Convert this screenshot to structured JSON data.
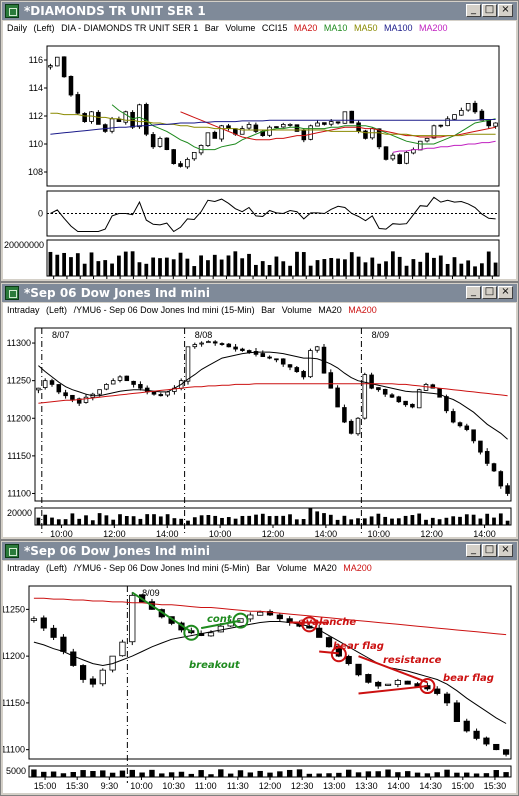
{
  "colors": {
    "ma20": "#cc1111",
    "ma10": "#1e8a1e",
    "ma50": "#8a8a00",
    "ma100": "#1a1a8a",
    "ma200": "#c020c0",
    "titlebar": "#7f8a99"
  },
  "panel1": {
    "title": "*DIAMONDS TR UNIT SER 1",
    "hdr": {
      "period": "Daily",
      "pos": "(Left)",
      "sym": "DIA - DIAMONDS TR UNIT SER 1",
      "bar": "Bar",
      "volume": "Volume",
      "cci": "CCI15",
      "ma20": "MA20",
      "ma10": "MA10",
      "ma50": "MA50",
      "ma100": "MA100",
      "ma200": "MA200"
    },
    "ytick_labels": [
      "116",
      "114",
      "112",
      "110",
      "108"
    ],
    "cci_zero": "0",
    "vol_label": "20000000",
    "xtick_labels": [
      "9",
      "11",
      "15",
      "17",
      "19",
      "23",
      "25",
      "30",
      "J",
      "5",
      "7",
      "8",
      "9",
      "13",
      "15",
      "19",
      "21",
      "23",
      "27",
      "29",
      "J",
      "6",
      "10",
      "12",
      "14",
      "18",
      "20",
      "24",
      "26",
      "28",
      "A",
      "3",
      "7",
      "9"
    ]
  },
  "panel2": {
    "title": "*Sep 06  Dow Jones Ind mini",
    "hdr": {
      "period": "Intraday",
      "pos": "(Left)",
      "sym": "/YMU6 - Sep 06  Dow Jones Ind mini  (15-Min)",
      "bar": "Bar",
      "volume": "Volume",
      "ma20": "MA20",
      "ma200": "MA200"
    },
    "dates": [
      "8/07",
      "8/08",
      "8/09"
    ],
    "ytick_labels": [
      "11300",
      "11250",
      "11200",
      "11150",
      "11100"
    ],
    "vol_label": "20000",
    "xtick_labels": [
      "10:00",
      "12:00",
      "14:00",
      "10:00",
      "12:00",
      "14:00",
      "10:00",
      "12:00",
      "14:00"
    ]
  },
  "panel3": {
    "title": "*Sep 06  Dow Jones Ind mini",
    "hdr": {
      "period": "Intraday",
      "pos": "(Left)",
      "sym": "/YMU6 - Sep 06  Dow Jones Ind mini  (5-Min)",
      "bar": "Bar",
      "volume": "Volume",
      "ma20": "MA20",
      "ma200": "MA200"
    },
    "dates": [
      "8/09"
    ],
    "ytick_labels": [
      "11250",
      "11200",
      "11150",
      "11100"
    ],
    "vol_label": "5000",
    "xtick_labels": [
      "15:00",
      "15:30",
      "9:30",
      "10:00",
      "10:30",
      "11:00",
      "11:30",
      "12:00",
      "12:30",
      "13:00",
      "13:30",
      "14:00",
      "14:30",
      "15:00",
      "15:30"
    ],
    "annotations": {
      "cont": "cont.",
      "breakout": "breakout",
      "avalanche": "avalanche",
      "bear_flag_1": "bear flag",
      "resistance": "resistance",
      "bear_flag_2": "bear flag"
    }
  },
  "chart_data": [
    {
      "type": "candlestick",
      "title": "DIA - DIAMONDS TR UNIT SER 1",
      "ylim": [
        107,
        117
      ],
      "series": [
        {
          "name": "DIA",
          "values": [
            115.6,
            116.2,
            114.8,
            113.5,
            112.2,
            111.6,
            112.3,
            111.4,
            110.9,
            111.8,
            111.6,
            112.3,
            111.2,
            112.8,
            110.7,
            109.8,
            110.4,
            109.6,
            108.6,
            108.4,
            108.9,
            109.4,
            109.9,
            110.8,
            110.4,
            111.3,
            111.1,
            110.7,
            111.1,
            111.4,
            110.9,
            110.6,
            111.2,
            111.2,
            111.4,
            111.4,
            110.9,
            110.3,
            111.3,
            111.5,
            111.4,
            111.6,
            111.5,
            112.3,
            111.5,
            110.9,
            110.4,
            111.1,
            109.8,
            108.9,
            109.2,
            108.6,
            109.4,
            109.6,
            110.2,
            110.4,
            111.3,
            111.3,
            111.8,
            112.1,
            112.4,
            112.9,
            112.3,
            111.7,
            111.3,
            111.5
          ]
        },
        {
          "name": "MA10",
          "values": [
            null,
            null,
            null,
            null,
            null,
            null,
            null,
            null,
            null,
            112.8,
            112.4,
            112.1,
            111.8,
            111.9,
            111.7,
            111.3,
            111.1,
            110.9,
            110.6,
            110.3,
            110.1,
            109.8,
            109.6,
            109.6,
            109.6,
            109.8,
            109.9,
            110.0,
            110.3,
            110.5,
            110.7,
            110.9,
            111.0,
            111.1,
            111.1,
            111.2,
            111.2,
            111.1,
            111.1,
            111.1,
            111.1,
            111.2,
            111.2,
            111.3,
            111.3,
            111.3,
            111.3,
            111.2,
            111.0,
            110.8,
            110.6,
            110.4,
            110.2,
            110.1,
            110.0,
            110.0,
            110.0,
            110.2,
            110.4,
            110.6,
            110.9,
            111.2,
            111.5,
            111.6,
            111.7,
            111.8
          ]
        },
        {
          "name": "MA20",
          "values": [
            null,
            null,
            null,
            null,
            null,
            null,
            null,
            null,
            null,
            null,
            null,
            null,
            null,
            null,
            null,
            null,
            null,
            null,
            null,
            112.3,
            112.1,
            111.9,
            111.7,
            111.5,
            111.3,
            111.1,
            110.9,
            110.7,
            110.5,
            110.4,
            110.3,
            110.3,
            110.3,
            110.4,
            110.4,
            110.5,
            110.6,
            110.6,
            110.7,
            110.8,
            110.9,
            111.0,
            111.1,
            111.2,
            111.2,
            111.2,
            111.1,
            111.1,
            111.0,
            110.9,
            110.8,
            110.7,
            110.6,
            110.6,
            110.5,
            110.5,
            110.5,
            110.5,
            110.6,
            110.6,
            110.7,
            110.8,
            110.9,
            111.0,
            111.1,
            111.2
          ]
        },
        {
          "name": "MA50",
          "values": [
            112.2,
            112.2,
            112.1,
            112.1,
            112.1,
            112.0,
            112.0,
            111.9,
            111.9,
            111.8,
            111.8,
            111.7,
            111.7,
            111.6,
            111.6,
            111.5,
            111.5,
            111.4,
            111.4,
            111.3,
            111.3,
            111.2,
            111.2,
            111.2,
            111.1,
            111.1,
            111.1,
            111.1,
            111.0,
            111.0,
            111.0,
            111.0,
            111.0,
            111.0,
            111.0,
            111.0,
            111.0,
            111.0,
            111.0,
            111.0,
            111.0,
            110.9,
            110.9,
            110.9,
            110.9,
            110.9,
            110.8,
            110.8,
            110.8,
            110.7,
            110.7,
            110.7,
            110.7,
            110.6,
            110.6,
            110.6,
            110.6,
            110.6,
            110.6,
            110.6,
            110.6,
            110.7,
            110.7,
            110.7,
            110.7,
            110.7
          ]
        },
        {
          "name": "MA100",
          "values": [
            110.7,
            110.75,
            110.8,
            110.85,
            110.9,
            110.95,
            111.0,
            111.05,
            111.1,
            111.15,
            111.2,
            111.2,
            111.25,
            111.3,
            111.3,
            111.35,
            111.4,
            111.4,
            111.45,
            111.5,
            111.5,
            111.5,
            111.55,
            111.55,
            111.6,
            111.6,
            111.6,
            111.6,
            111.65,
            111.65,
            111.65,
            111.65,
            111.7,
            111.7,
            111.7,
            111.7,
            111.7,
            111.7,
            111.7,
            111.7,
            111.7,
            111.7,
            111.7,
            111.7,
            111.7,
            111.7,
            111.7,
            111.7,
            111.7,
            111.7,
            111.7,
            111.7,
            111.7,
            111.7,
            111.7,
            111.7,
            111.7,
            111.7,
            111.7,
            111.7,
            111.7,
            111.7,
            111.7,
            111.75,
            111.75,
            111.75
          ]
        },
        {
          "name": "MA200",
          "values": [
            null,
            null,
            null,
            null,
            null,
            null,
            null,
            null,
            null,
            null,
            null,
            null,
            null,
            null,
            null,
            null,
            null,
            null,
            null,
            null,
            null,
            null,
            null,
            null,
            null,
            null,
            null,
            null,
            null,
            null,
            null,
            null,
            null,
            null,
            null,
            null,
            null,
            null,
            null,
            null,
            null,
            null,
            null,
            null,
            null,
            null,
            null,
            null,
            null,
            null,
            109.4,
            109.5,
            109.5,
            109.6,
            109.6,
            109.7,
            109.7,
            109.8,
            109.8,
            109.9,
            109.9,
            110.0,
            110.0,
            110.1,
            110.1,
            110.2
          ]
        }
      ]
    },
    {
      "type": "candlestick",
      "title": "/YMU6 - Sep 06 Dow Jones Ind mini (15-Min)",
      "ylim": [
        11090,
        11320
      ],
      "series": [
        {
          "name": "YM 15-Min",
          "values": [
            11240,
            11250,
            11245,
            11235,
            11230,
            11225,
            11220,
            11228,
            11232,
            11238,
            11245,
            11250,
            11255,
            11250,
            11245,
            11240,
            11235,
            11232,
            11230,
            11235,
            11240,
            11250,
            11295,
            11298,
            11300,
            11302,
            11300,
            11298,
            11295,
            11292,
            11290,
            11288,
            11285,
            11282,
            11280,
            11278,
            11272,
            11268,
            11262,
            11255,
            11290,
            11295,
            11260,
            11240,
            11215,
            11195,
            11180,
            11200,
            11258,
            11240,
            11238,
            11232,
            11228,
            11222,
            11218,
            11215,
            11238,
            11245,
            11240,
            11228,
            11210,
            11195,
            11190,
            11185,
            11170,
            11155,
            11140,
            11130,
            11110,
            11100
          ]
        },
        {
          "name": "MA20",
          "values": [
            11270,
            11262,
            11255,
            11248,
            11242,
            11238,
            11235,
            11232,
            11230,
            11230,
            11232,
            11234,
            11236,
            11237,
            11238,
            11238,
            11237,
            11236,
            11235,
            11235,
            11240,
            11245,
            11252,
            11258,
            11265,
            11270,
            11275,
            11280,
            11282,
            11284,
            11286,
            11287,
            11288,
            11288,
            11288,
            11287,
            11286,
            11284,
            11282,
            11280,
            11280,
            11279,
            11276,
            11272,
            11267,
            11260,
            11254,
            11250,
            11248,
            11246,
            11244,
            11242,
            11240,
            11238,
            11236,
            11235,
            11235,
            11234,
            11233,
            11232,
            11228,
            11225,
            11220,
            11214,
            11208,
            11200,
            11192,
            11186,
            11180,
            11172
          ]
        },
        {
          "name": "MA200",
          "values": [
            11220,
            11221,
            11222,
            11223,
            11224,
            11224,
            11225,
            11226,
            11227,
            11228,
            11229,
            11230,
            11231,
            11232,
            11233,
            11234,
            11235,
            11236,
            11237,
            11238,
            11239,
            11240,
            11241,
            11242,
            11242,
            11243,
            11243,
            11244,
            11244,
            11245,
            11245,
            11245,
            11246,
            11246,
            11246,
            11246,
            11246,
            11246,
            11246,
            11246,
            11246,
            11246,
            11246,
            11246,
            11246,
            11246,
            11246,
            11246,
            11246,
            11246,
            11246,
            11246,
            11246,
            11245,
            11245,
            11244,
            11243,
            11242,
            11241,
            11240,
            11239,
            11238,
            11237,
            11236,
            11235,
            11234,
            11233,
            11232,
            11231,
            11230
          ]
        }
      ]
    },
    {
      "type": "candlestick",
      "title": "/YMU6 - Sep 06 Dow Jones Ind mini (5-Min)",
      "ylim": [
        11090,
        11275
      ],
      "series": [
        {
          "name": "YM 5-Min",
          "values": [
            11240,
            11230,
            11220,
            11205,
            11190,
            11175,
            11170,
            11185,
            11200,
            11215,
            11265,
            11258,
            11250,
            11242,
            11235,
            11228,
            11225,
            11222,
            11225,
            11232,
            11236,
            11240,
            11244,
            11247,
            11244,
            11240,
            11236,
            11232,
            11230,
            11220,
            11210,
            11200,
            11192,
            11180,
            11172,
            11168,
            11170,
            11174,
            11170,
            11168,
            11165,
            11160,
            11150,
            11130,
            11120,
            11112,
            11106,
            11100,
            11095
          ]
        },
        {
          "name": "MA20",
          "values": [
            11215,
            11212,
            11208,
            11205,
            11200,
            11196,
            11192,
            11190,
            11192,
            11196,
            11200,
            11205,
            11210,
            11214,
            11218,
            11220,
            11222,
            11224,
            11226,
            11228,
            11230,
            11232,
            11234,
            11236,
            11237,
            11237,
            11236,
            11234,
            11232,
            11228,
            11222,
            11216,
            11210,
            11204,
            11198,
            11192,
            11188,
            11186,
            11184,
            11181,
            11178,
            11175,
            11170,
            11163,
            11155,
            11148,
            11141,
            11134,
            11128
          ]
        },
        {
          "name": "MA200",
          "values": [
            11262,
            11262,
            11261,
            11261,
            11260,
            11260,
            11259,
            11259,
            11258,
            11258,
            11257,
            11257,
            11256,
            11255,
            11255,
            11254,
            11253,
            11252,
            11252,
            11251,
            11250,
            11249,
            11248,
            11248,
            11247,
            11246,
            11245,
            11244,
            11243,
            11242,
            11241,
            11240,
            11239,
            11238,
            11237,
            11236,
            11235,
            11234,
            11233,
            11232,
            11231,
            11230,
            11229,
            11228,
            11227,
            11226,
            11225,
            11224,
            11223
          ]
        }
      ]
    }
  ]
}
